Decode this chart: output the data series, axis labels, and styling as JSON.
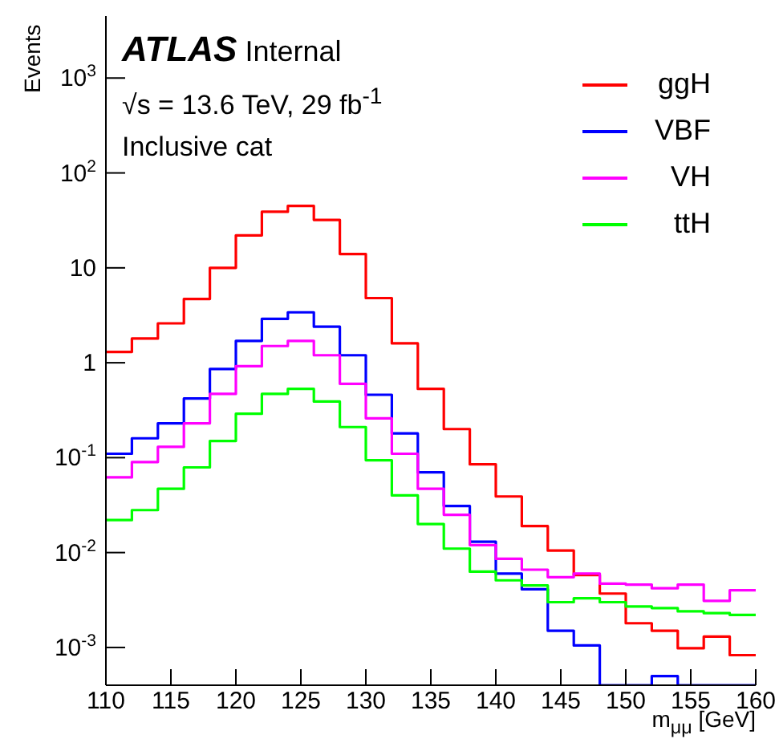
{
  "chart_data": {
    "type": "histogram",
    "ylabel": "Events",
    "xlabel": "m$_{μμ}$ [GeV]",
    "annotations": [
      "ATLAS",
      "Internal",
      "√s = 13.6 TeV, 29 fb$^{-1}$",
      "Inclusive cat"
    ],
    "bins": [
      110,
      112,
      114,
      116,
      118,
      120,
      122,
      124,
      126,
      128,
      130,
      132,
      134,
      136,
      138,
      140,
      142,
      144,
      146,
      148,
      150,
      152,
      154,
      156,
      158,
      160
    ],
    "series": [
      {
        "name": "ggH",
        "color": "#ff0000",
        "values": [
          1.3,
          1.8,
          2.6,
          4.7,
          10,
          22,
          39,
          45,
          32,
          14,
          4.8,
          1.6,
          0.53,
          0.2,
          0.085,
          0.039,
          0.019,
          0.0105,
          0.0058,
          0.0037,
          0.0018,
          0.0015,
          0.00098,
          0.0013,
          0.00083
        ]
      },
      {
        "name": "VBF",
        "color": "#0000ff",
        "values": [
          0.11,
          0.16,
          0.23,
          0.42,
          0.86,
          1.7,
          2.9,
          3.4,
          2.4,
          1.2,
          0.46,
          0.18,
          0.07,
          0.031,
          0.013,
          0.006,
          0.0041,
          0.0015,
          0.00105,
          null,
          null,
          0.0005,
          null,
          null,
          null
        ]
      },
      {
        "name": "VH",
        "color": "#ff00ff",
        "values": [
          0.062,
          0.09,
          0.13,
          0.23,
          0.47,
          0.92,
          1.5,
          1.7,
          1.2,
          0.6,
          0.26,
          0.11,
          0.047,
          0.025,
          0.012,
          0.0086,
          0.0066,
          0.0055,
          0.006,
          0.0047,
          0.0046,
          0.0042,
          0.0046,
          0.0031,
          0.004
        ]
      },
      {
        "name": "ttH",
        "color": "#00ff00",
        "values": [
          0.022,
          0.028,
          0.047,
          0.079,
          0.15,
          0.29,
          0.47,
          0.53,
          0.39,
          0.21,
          0.094,
          0.04,
          0.02,
          0.011,
          0.0063,
          0.0051,
          0.0045,
          0.003,
          0.0033,
          0.003,
          0.0027,
          0.0026,
          0.0024,
          0.0023,
          0.0022
        ]
      }
    ],
    "xlim": [
      110,
      160
    ],
    "xticks": [
      110,
      115,
      120,
      125,
      130,
      135,
      140,
      145,
      150,
      155,
      160
    ],
    "ylim": [
      0.0004,
      4500
    ],
    "log": true,
    "yticks": [
      {
        "value": 0.001,
        "label": "10$^{-3}$"
      },
      {
        "value": 0.01,
        "label": "10$^{-2}$"
      },
      {
        "value": 0.1,
        "label": "10$^{-1}$"
      },
      1,
      10,
      {
        "value": 100,
        "label": "10$^{2}$"
      },
      {
        "value": 1000,
        "label": "10$^{3}$"
      }
    ],
    "legend": "top right"
  }
}
